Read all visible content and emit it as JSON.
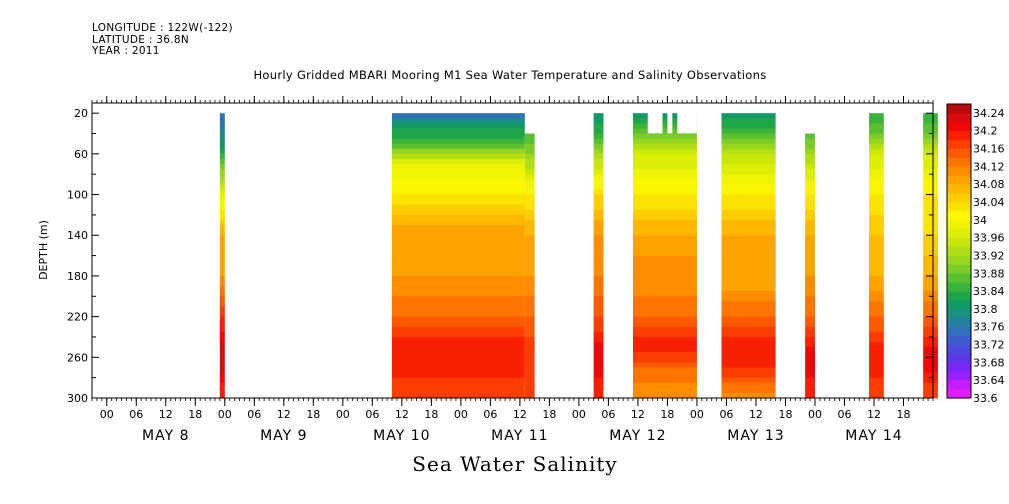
{
  "header": {
    "longitude": "LONGITUDE : 122W(-122)",
    "latitude": "LATITUDE : 36.8N",
    "year": "YEAR : 2011"
  },
  "chart_data": {
    "type": "heatmap",
    "title": "Hourly Gridded MBARI Mooring M1 Sea Water Temperature and Salinity Observations",
    "subtitle": "Sea Water Salinity",
    "ylabel": "DEPTH (m)",
    "xlabel": "",
    "x_unit": "hours since May 7 2011 21:00",
    "xlim": [
      0,
      171
    ],
    "ylim": [
      10,
      300
    ],
    "y_inverted": true,
    "y_ticks": [
      20,
      60,
      100,
      140,
      180,
      220,
      260,
      300
    ],
    "x_hour_ticks": [
      "00",
      "06",
      "12",
      "18",
      "00",
      "06",
      "12",
      "18",
      "00",
      "06",
      "12",
      "18",
      "00",
      "06",
      "12",
      "18",
      "00",
      "06",
      "12",
      "18",
      "00",
      "06",
      "12",
      "18",
      "00",
      "06",
      "12",
      "18"
    ],
    "x_day_labels": [
      "MAY  8",
      "MAY  9",
      "MAY 10",
      "MAY 11",
      "MAY 12",
      "MAY 13",
      "MAY 14"
    ],
    "colorbar": {
      "min": 33.6,
      "max": 34.26,
      "tick_labels": [
        "34.24",
        "34.2",
        "34.16",
        "34.12",
        "34.08",
        "34.04",
        "34",
        "33.96",
        "33.92",
        "33.88",
        "33.84",
        "33.8",
        "33.76",
        "33.72",
        "33.68",
        "33.64",
        "33.6"
      ],
      "levels": [
        {
          "v": 33.6,
          "color": "#e31bff"
        },
        {
          "v": 33.62,
          "color": "#c21cff"
        },
        {
          "v": 33.64,
          "color": "#9b20ff"
        },
        {
          "v": 33.66,
          "color": "#7a28f5"
        },
        {
          "v": 33.68,
          "color": "#5a37e8"
        },
        {
          "v": 33.7,
          "color": "#4a4ade"
        },
        {
          "v": 33.72,
          "color": "#3b5dcf"
        },
        {
          "v": 33.74,
          "color": "#2f70b8"
        },
        {
          "v": 33.76,
          "color": "#23809f"
        },
        {
          "v": 33.78,
          "color": "#1b8f82"
        },
        {
          "v": 33.8,
          "color": "#109a65"
        },
        {
          "v": 33.82,
          "color": "#1fa648"
        },
        {
          "v": 33.84,
          "color": "#3ab33a"
        },
        {
          "v": 33.86,
          "color": "#5bc02f"
        },
        {
          "v": 33.88,
          "color": "#7bcc28"
        },
        {
          "v": 33.9,
          "color": "#99d61e"
        },
        {
          "v": 33.92,
          "color": "#b2df14"
        },
        {
          "v": 33.94,
          "color": "#c9e70a"
        },
        {
          "v": 33.96,
          "color": "#dcee06"
        },
        {
          "v": 33.98,
          "color": "#eef403"
        },
        {
          "v": 34.0,
          "color": "#fbf600"
        },
        {
          "v": 34.02,
          "color": "#fbe200"
        },
        {
          "v": 34.04,
          "color": "#fccd00"
        },
        {
          "v": 34.06,
          "color": "#fdb800"
        },
        {
          "v": 34.08,
          "color": "#fda300"
        },
        {
          "v": 34.1,
          "color": "#fd8c00"
        },
        {
          "v": 34.12,
          "color": "#fd7400"
        },
        {
          "v": 34.14,
          "color": "#fc5a00"
        },
        {
          "v": 34.16,
          "color": "#fb3d00"
        },
        {
          "v": 34.18,
          "color": "#f92000"
        },
        {
          "v": 34.2,
          "color": "#f00808"
        },
        {
          "v": 34.22,
          "color": "#d80c0c"
        },
        {
          "v": 34.24,
          "color": "#b40c0c"
        }
      ]
    },
    "segments": [
      {
        "x0": 26,
        "x1": 27,
        "depth_top": 20,
        "profile": [
          [
            20,
            33.74
          ],
          [
            40,
            33.78
          ],
          [
            60,
            33.84
          ],
          [
            100,
            33.98
          ],
          [
            140,
            34.08
          ],
          [
            180,
            34.1
          ],
          [
            220,
            34.18
          ],
          [
            260,
            34.24
          ],
          [
            300,
            34.18
          ]
        ]
      },
      {
        "x0": 61,
        "x1": 88,
        "depth_top": 20,
        "profile": [
          [
            20,
            33.74
          ],
          [
            30,
            33.8
          ],
          [
            50,
            33.86
          ],
          [
            70,
            33.98
          ],
          [
            100,
            34.02
          ],
          [
            120,
            34.06
          ],
          [
            140,
            34.1
          ],
          [
            160,
            34.08
          ],
          [
            180,
            34.1
          ],
          [
            200,
            34.12
          ],
          [
            220,
            34.14
          ],
          [
            240,
            34.18
          ],
          [
            260,
            34.2
          ],
          [
            280,
            34.18
          ],
          [
            300,
            34.16
          ]
        ]
      },
      {
        "x0": 88,
        "x1": 90,
        "depth_top": 40,
        "profile": [
          [
            40,
            33.86
          ],
          [
            60,
            33.9
          ],
          [
            100,
            34.02
          ],
          [
            140,
            34.08
          ],
          [
            180,
            34.1
          ],
          [
            220,
            34.14
          ],
          [
            260,
            34.18
          ],
          [
            300,
            34.16
          ]
        ]
      },
      {
        "x0": 102,
        "x1": 104,
        "depth_top": 20,
        "profile": [
          [
            20,
            33.8
          ],
          [
            40,
            33.84
          ],
          [
            60,
            33.92
          ],
          [
            100,
            34.04
          ],
          [
            140,
            34.1
          ],
          [
            180,
            34.12
          ],
          [
            220,
            34.16
          ],
          [
            260,
            34.22
          ],
          [
            300,
            34.18
          ]
        ]
      },
      {
        "x0": 110,
        "x1": 123,
        "depth_top": 20,
        "profile": [
          [
            20,
            33.8
          ],
          [
            40,
            33.88
          ],
          [
            60,
            33.96
          ],
          [
            100,
            34.02
          ],
          [
            140,
            34.08
          ],
          [
            160,
            34.1
          ],
          [
            180,
            34.1
          ],
          [
            220,
            34.14
          ],
          [
            250,
            34.2
          ],
          [
            270,
            34.14
          ],
          [
            300,
            34.1
          ]
        ]
      },
      {
        "x0": 128,
        "x1": 139,
        "depth_top": 20,
        "profile": [
          [
            20,
            33.8
          ],
          [
            40,
            33.86
          ],
          [
            60,
            33.94
          ],
          [
            100,
            34.02
          ],
          [
            140,
            34.08
          ],
          [
            180,
            34.08
          ],
          [
            220,
            34.14
          ],
          [
            250,
            34.2
          ],
          [
            270,
            34.18
          ],
          [
            300,
            34.1
          ]
        ]
      },
      {
        "x0": 145,
        "x1": 147,
        "depth_top": 40,
        "profile": [
          [
            40,
            33.86
          ],
          [
            60,
            33.92
          ],
          [
            100,
            34.02
          ],
          [
            140,
            34.08
          ],
          [
            180,
            34.1
          ],
          [
            220,
            34.14
          ],
          [
            260,
            34.22
          ],
          [
            300,
            34.18
          ]
        ]
      },
      {
        "x0": 158,
        "x1": 161,
        "depth_top": 20,
        "profile": [
          [
            20,
            33.84
          ],
          [
            40,
            33.88
          ],
          [
            60,
            33.96
          ],
          [
            100,
            34.02
          ],
          [
            140,
            34.06
          ],
          [
            180,
            34.08
          ],
          [
            220,
            34.14
          ],
          [
            260,
            34.2
          ],
          [
            300,
            34.16
          ]
        ]
      },
      {
        "x0": 169,
        "x1": 172,
        "depth_top": 20,
        "profile": [
          [
            20,
            33.84
          ],
          [
            40,
            33.88
          ],
          [
            60,
            33.96
          ],
          [
            100,
            34.02
          ],
          [
            140,
            34.04
          ],
          [
            180,
            34.08
          ],
          [
            220,
            34.14
          ],
          [
            260,
            34.22
          ],
          [
            300,
            34.16
          ]
        ]
      }
    ],
    "gaps": [
      {
        "x0": 113,
        "x1": 116,
        "depth_top": 20,
        "depth_bottom": 40
      },
      {
        "x0": 117,
        "x1": 118,
        "depth_top": 20,
        "depth_bottom": 40
      },
      {
        "x0": 119,
        "x1": 123,
        "depth_top": 20,
        "depth_bottom": 40
      }
    ]
  }
}
